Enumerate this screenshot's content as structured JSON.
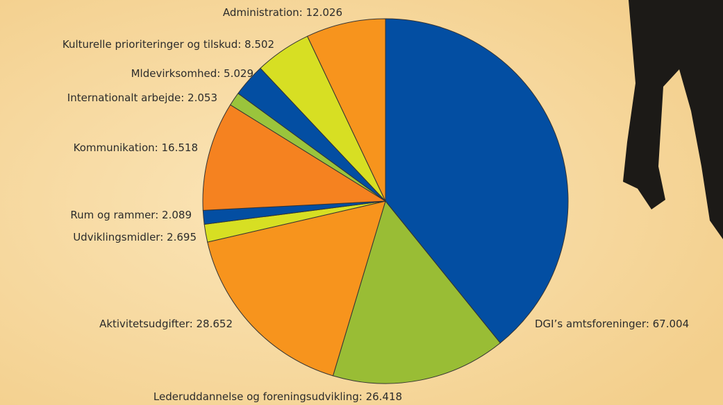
{
  "chart_data": {
    "type": "pie",
    "label_separator": ": ",
    "categories": [
      "DGI’s amtsforeninger",
      "Lederuddannelse og foreningsudvikling",
      "Aktivitetsudgifter",
      "Udviklingsmidler",
      "Rum og rammer",
      "Kommunikation",
      "Internationalt arbejde",
      "Mldevirksomhed",
      "Kulturelle prioriteringer og tilskud",
      "Administration"
    ],
    "values": [
      67.004,
      26.418,
      28.652,
      2.695,
      2.089,
      16.518,
      2.053,
      5.029,
      8.502,
      12.026
    ],
    "colors": [
      "#034ea2",
      "#99bd35",
      "#f7941d",
      "#d7df23",
      "#034ea2",
      "#f58220",
      "#9ac43c",
      "#034ea2",
      "#d7df23",
      "#f7941d"
    ]
  }
}
